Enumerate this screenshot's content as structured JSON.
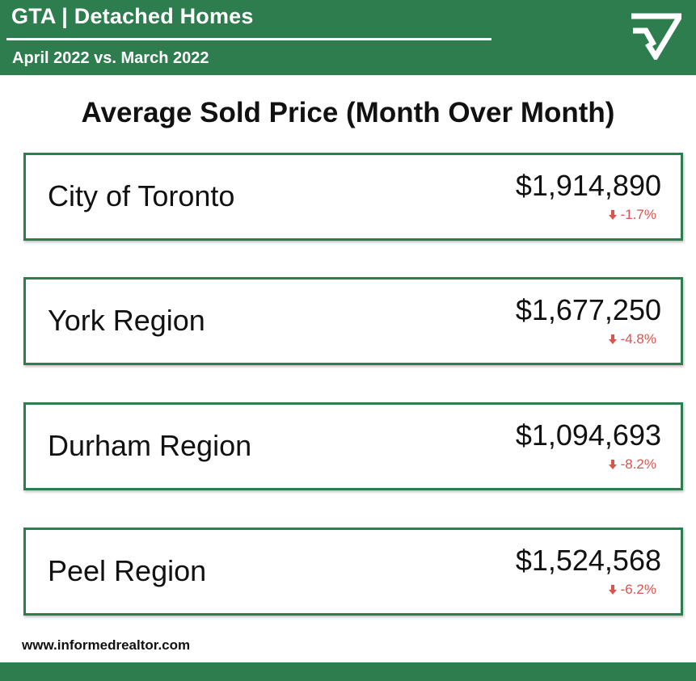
{
  "header": {
    "title": "GTA | Detached Homes",
    "subtitle": "April 2022 vs. March 2022"
  },
  "section_title": "Average Sold Price (Month Over Month)",
  "regions": [
    {
      "label": "City of Toronto",
      "price": "$1,914,890",
      "change": "-1.7%",
      "trend": "down"
    },
    {
      "label": "York Region",
      "price": "$1,677,250",
      "change": "-4.8%",
      "trend": "down"
    },
    {
      "label": "Durham Region",
      "price": "$1,094,693",
      "change": "-8.2%",
      "trend": "down"
    },
    {
      "label": "Peel Region",
      "price": "$1,524,568",
      "change": "-6.2%",
      "trend": "down"
    }
  ],
  "footer": {
    "url": "www.informedrealtor.com"
  },
  "colors": {
    "brand_green": "#2e7d4f",
    "negative_red": "#d9534f"
  },
  "icons": {
    "logo": "checkmark-triangle-logo",
    "trend": "down-arrow-icon"
  }
}
